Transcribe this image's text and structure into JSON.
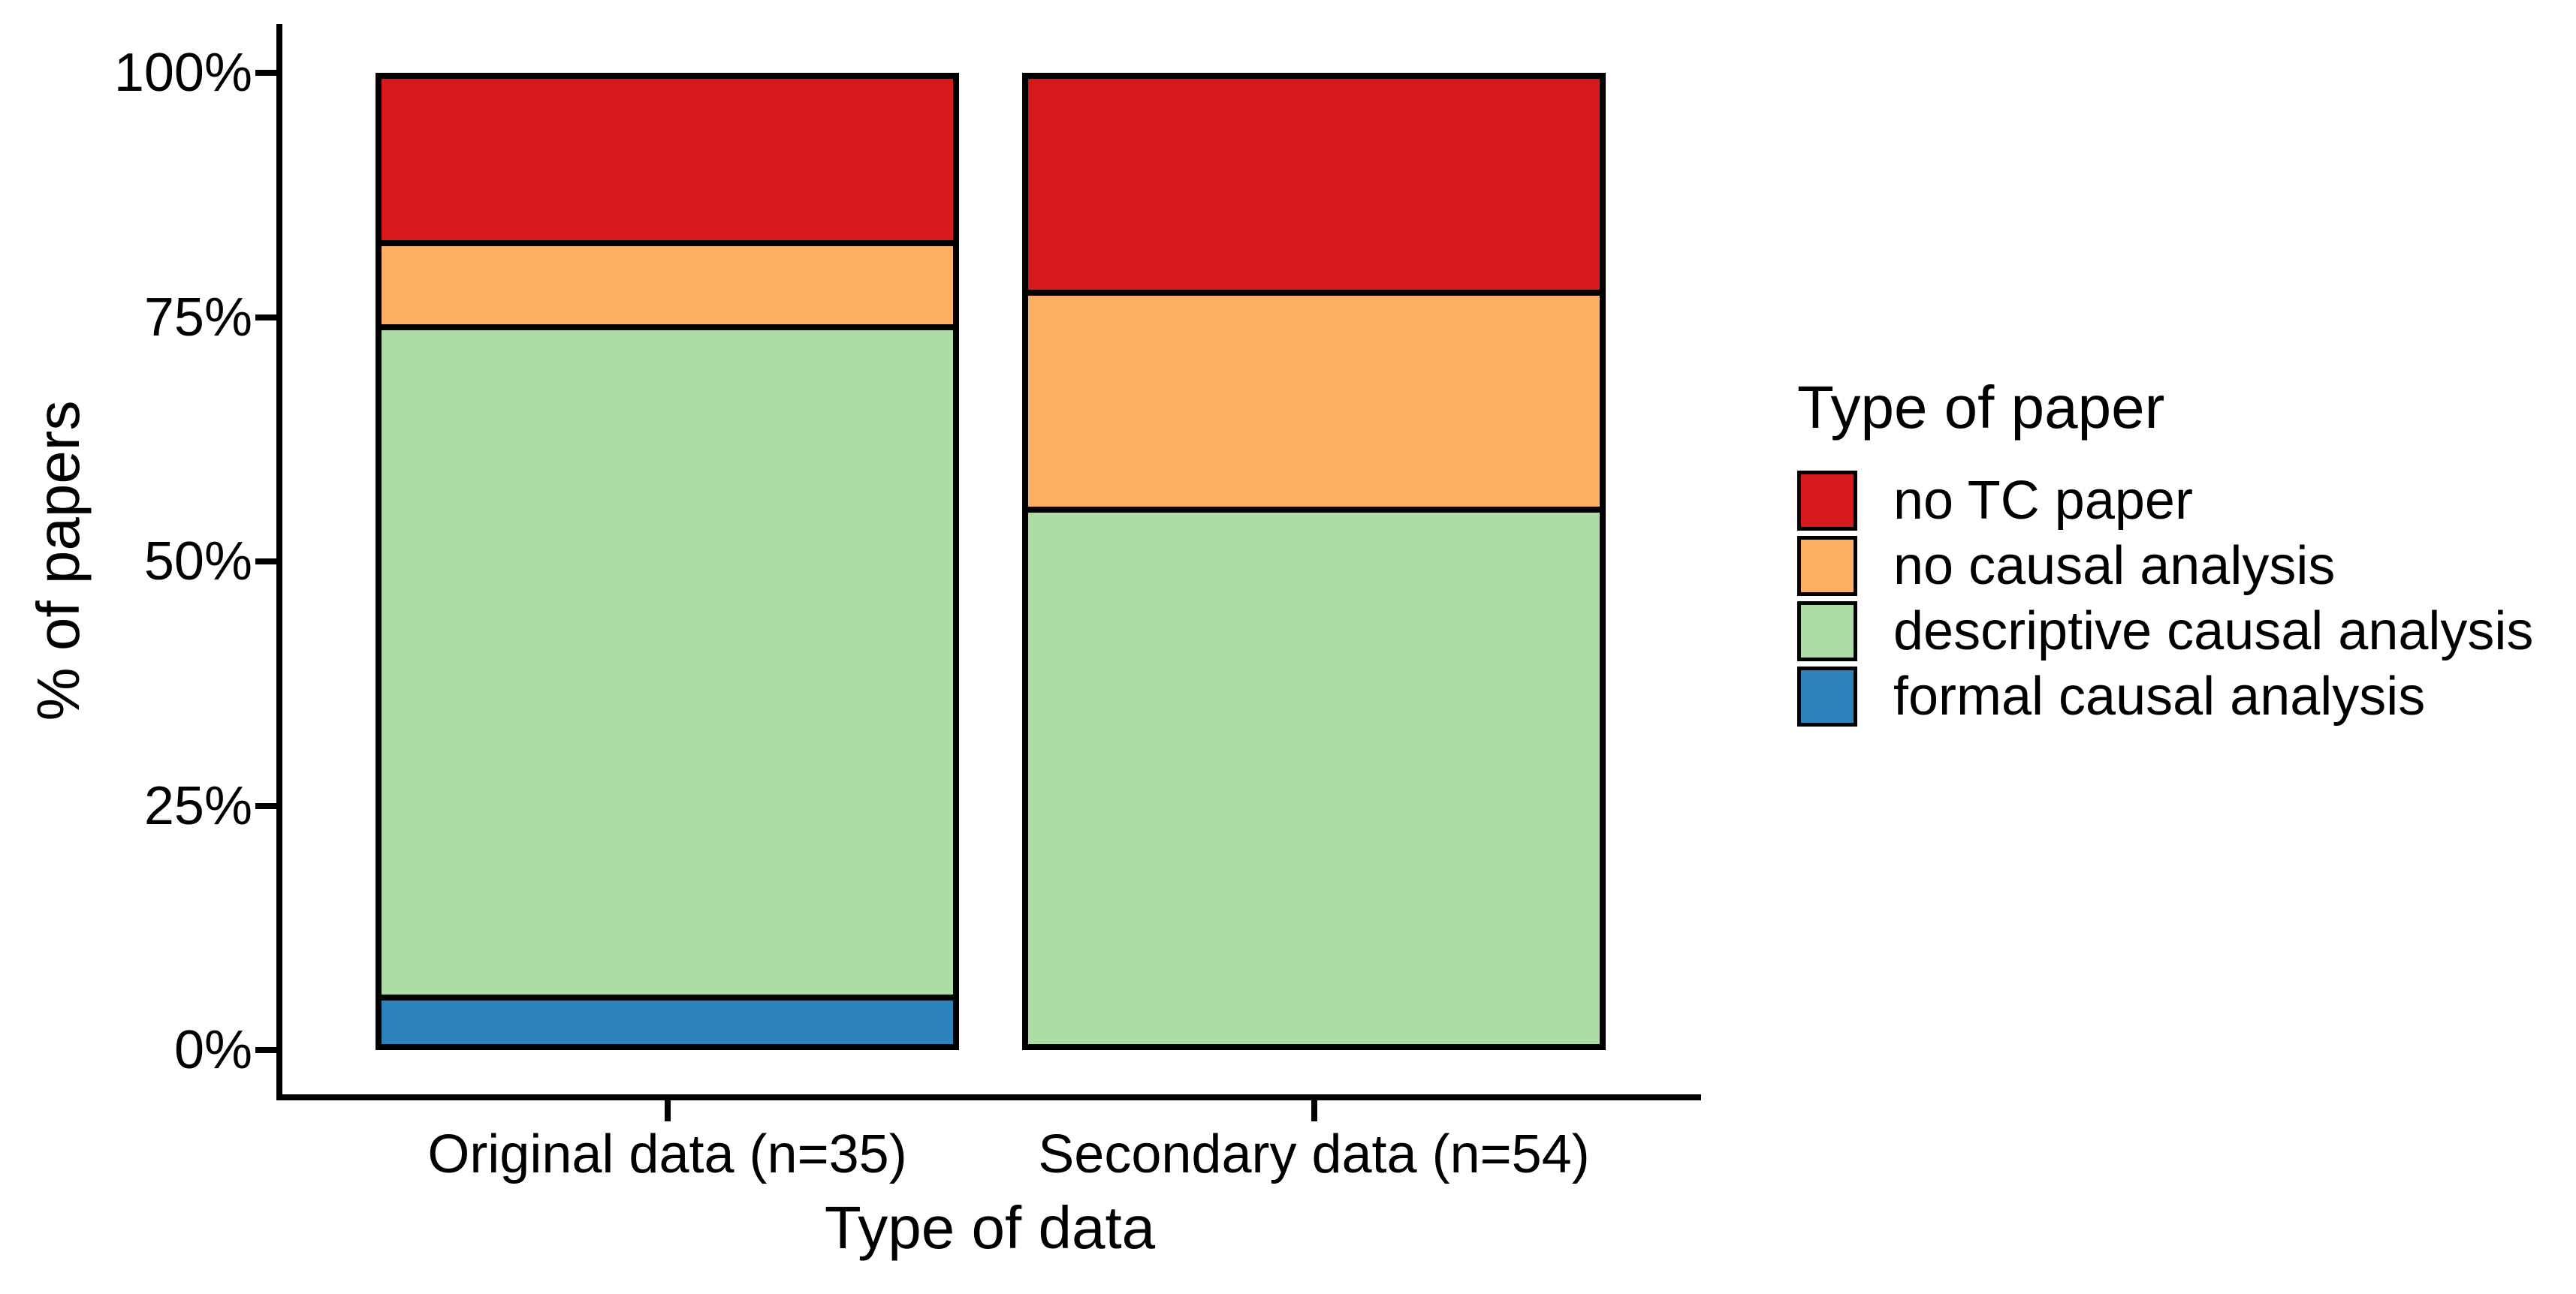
{
  "chart_data": {
    "type": "bar",
    "variant": "stacked-percent",
    "title": "",
    "xlabel": "Type of data",
    "ylabel": "% of papers",
    "background": "#ffffff",
    "grid": false,
    "bar_outline_color": "#000000",
    "categories": [
      "Original data (n=35)",
      "Secondary data (n=54)"
    ],
    "y_axis": {
      "range": [
        0,
        100
      ],
      "ticks": [
        {
          "label": "0%",
          "value": 0
        },
        {
          "label": "25%",
          "value": 25
        },
        {
          "label": "50%",
          "value": 50
        },
        {
          "label": "75%",
          "value": 75
        },
        {
          "label": "100%",
          "value": 100
        }
      ]
    },
    "legend": {
      "title": "Type of paper",
      "position": "right"
    },
    "series": [
      {
        "name": "no TC paper",
        "color": "#d7191c",
        "values": [
          17.1,
          22.2
        ]
      },
      {
        "name": "no causal analysis",
        "color": "#fdae61",
        "values": [
          8.6,
          22.2
        ]
      },
      {
        "name": "descriptive causal analysis",
        "color": "#abdda4",
        "values": [
          68.6,
          55.6
        ]
      },
      {
        "name": "formal causal analysis",
        "color": "#2b83ba",
        "values": [
          5.7,
          0.0
        ]
      }
    ]
  }
}
